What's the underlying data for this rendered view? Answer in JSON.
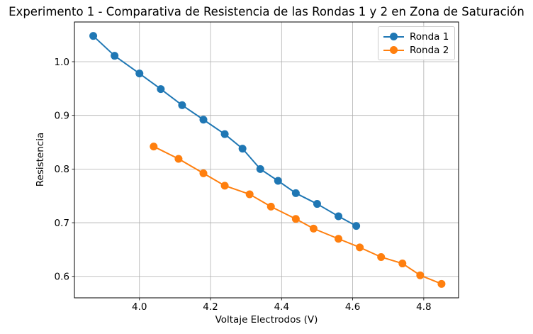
{
  "chart_data": {
    "type": "line",
    "title": "Experimento 1 - Comparativa de Resistencia de las Rondas 1 y 2 en Zona de Saturación",
    "xlabel": "Voltaje Electrodos (V)",
    "ylabel": "Resistencia",
    "xlim": [
      3.817,
      4.898
    ],
    "ylim": [
      0.56,
      1.074
    ],
    "x_ticks": [
      4.0,
      4.2,
      4.4,
      4.6,
      4.8
    ],
    "y_ticks": [
      0.6,
      0.7,
      0.8,
      0.9,
      1.0
    ],
    "grid": true,
    "grid_color": "#b0b0b0",
    "axis_color": "#000000",
    "legend_position": "upper right",
    "series": [
      {
        "name": "Ronda 1",
        "color": "#1f77b4",
        "marker": "circle",
        "x": [
          3.87,
          3.93,
          4.0,
          4.06,
          4.12,
          4.18,
          4.24,
          4.29,
          4.34,
          4.39,
          4.44,
          4.5,
          4.56,
          4.61
        ],
        "y": [
          1.048,
          1.011,
          0.978,
          0.949,
          0.919,
          0.892,
          0.865,
          0.838,
          0.8,
          0.778,
          0.755,
          0.735,
          0.712,
          0.694
        ]
      },
      {
        "name": "Ronda 2",
        "color": "#ff7f0e",
        "marker": "circle",
        "x": [
          4.04,
          4.11,
          4.18,
          4.24,
          4.31,
          4.37,
          4.44,
          4.49,
          4.56,
          4.62,
          4.68,
          4.74,
          4.79,
          4.85
        ],
        "y": [
          0.842,
          0.819,
          0.792,
          0.769,
          0.753,
          0.73,
          0.707,
          0.689,
          0.67,
          0.654,
          0.636,
          0.624,
          0.602,
          0.586
        ]
      }
    ]
  }
}
